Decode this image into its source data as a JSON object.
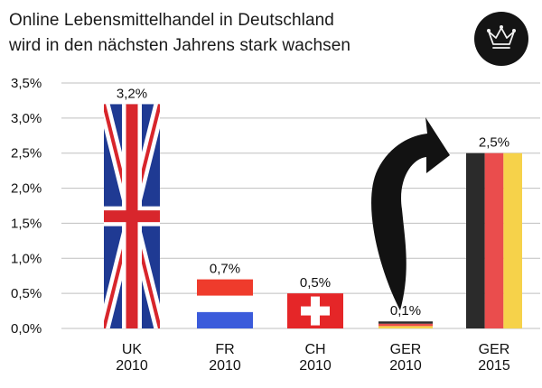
{
  "title_lines": [
    "Online Lebensmittelhandel in Deutschland",
    "wird in den nächsten Jahrens stark wachsen"
  ],
  "chart_data": {
    "type": "bar",
    "categories": [
      [
        "UK",
        "2010"
      ],
      [
        "FR",
        "2010"
      ],
      [
        "CH",
        "2010"
      ],
      [
        "GER",
        "2010"
      ],
      [
        "GER",
        "2015"
      ]
    ],
    "values": [
      3.2,
      0.7,
      0.5,
      0.1,
      2.5
    ],
    "value_labels": [
      "3,2%",
      "0,7%",
      "0,5%",
      "0,1%",
      "2,5%"
    ],
    "fills": [
      "flag-uk",
      "flag-fr",
      "flag-ch",
      "flag-de",
      "flag-de-vertical"
    ],
    "yticks": [
      0,
      0.5,
      1,
      1.5,
      2,
      2.5,
      3,
      3.5
    ],
    "ytick_labels": [
      "0,0%",
      "0,5%",
      "1,0%",
      "1,5%",
      "2,0%",
      "2,5%",
      "3,0%",
      "3,5%"
    ],
    "ylim": [
      0,
      3.5
    ],
    "grid": true,
    "annotation": "curved-arrow-up",
    "colors": {
      "grid": "#bfbfbf",
      "uk_blue": "#1f3a93",
      "uk_red": "#d8262c",
      "fr_blue": "#3b5bdb",
      "fr_red": "#ef3b2c",
      "ch_red": "#e52628",
      "de_black": "#2b2b2b",
      "de_red": "#ea4d4d",
      "de_gold": "#f6d24a"
    }
  },
  "logo_icon": "crown-icon"
}
